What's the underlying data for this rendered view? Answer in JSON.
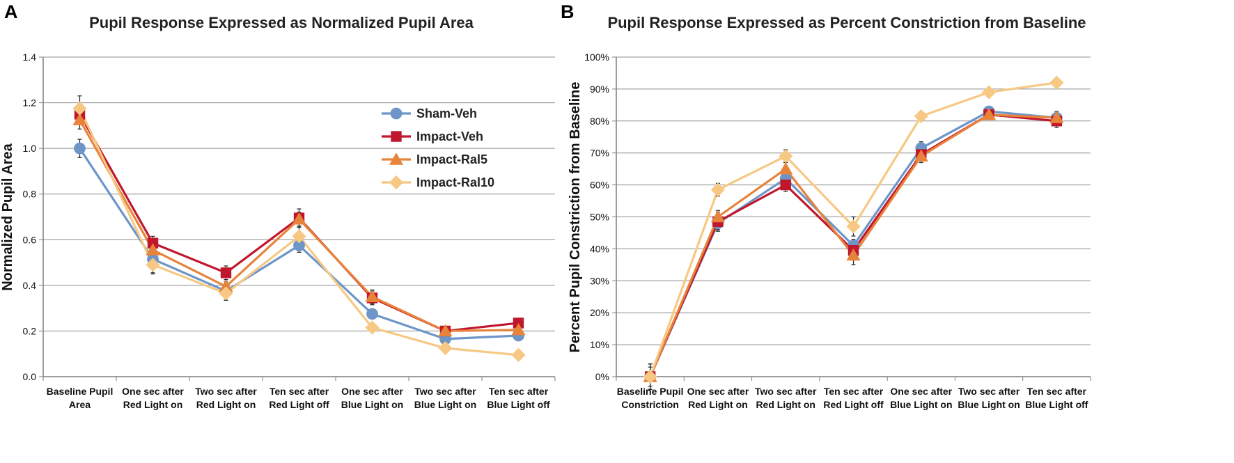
{
  "panels": [
    {
      "letter": "A",
      "title": "Pupil Response Expressed as Normalized Pupil Area",
      "ylabel": "Normalized Pupil Area",
      "y_ticks": [
        "0.0",
        "0.2",
        "0.4",
        "0.6",
        "0.8",
        "1.0",
        "1.2",
        "1.4"
      ],
      "categories": [
        [
          "Baseline Pupil",
          "Area"
        ],
        [
          "One sec after",
          "Red Light on"
        ],
        [
          "Two sec after",
          "Red Light on"
        ],
        [
          "Ten sec after",
          "Red Light off"
        ],
        [
          "One sec after",
          "Blue Light on"
        ],
        [
          "Two sec after",
          "Blue Light on"
        ],
        [
          "Ten sec after",
          "Blue Light off"
        ]
      ],
      "legend": [
        "Sham-Veh",
        "Impact-Veh",
        "Impact-Ral5",
        "Impact-Ral10"
      ]
    },
    {
      "letter": "B",
      "title": "Pupil Response Expressed as Percent Constriction from Baseline",
      "ylabel": "Percent Pupil Constriction from Baseline",
      "y_ticks": [
        "0%",
        "10%",
        "20%",
        "30%",
        "40%",
        "50%",
        "60%",
        "70%",
        "80%",
        "90%",
        "100%"
      ],
      "categories": [
        [
          "Baseline Pupil",
          "Constriction"
        ],
        [
          "One sec after",
          "Red Light on"
        ],
        [
          "Two sec after",
          "Red Light on"
        ],
        [
          "Ten sec after",
          "Red Light off"
        ],
        [
          "One sec after",
          "Blue Light on"
        ],
        [
          "Two sec after",
          "Blue Light on"
        ],
        [
          "Ten sec after",
          "Blue Light off"
        ]
      ]
    }
  ],
  "chart_data": [
    {
      "type": "line",
      "title": "Pupil Response Expressed as Normalized Pupil Area",
      "xlabel": "",
      "ylabel": "Normalized Pupil Area",
      "ylim": [
        0,
        1.4
      ],
      "grid": true,
      "legend_position": "top-right",
      "categories": [
        "Baseline Pupil Area",
        "One sec after Red Light on",
        "Two sec after Red Light on",
        "Ten sec after Red Light off",
        "One sec after Blue Light on",
        "Two sec after Blue Light on",
        "Ten sec after Blue Light off"
      ],
      "series": [
        {
          "name": "Sham-Veh",
          "color": "#6d95c8",
          "marker": "circle",
          "values": [
            1.0,
            0.515,
            0.375,
            0.575,
            0.275,
            0.165,
            0.18
          ],
          "errors": [
            0.04,
            0.06,
            0.04,
            0.03,
            0.02,
            0.01,
            0.01
          ]
        },
        {
          "name": "Impact-Veh",
          "color": "#c0172c",
          "marker": "square",
          "values": [
            1.15,
            0.585,
            0.455,
            0.695,
            0.345,
            0.2,
            0.235
          ],
          "errors": [
            0.04,
            0.03,
            0.03,
            0.04,
            0.03,
            0.02,
            0.02
          ]
        },
        {
          "name": "Impact-Ral5",
          "color": "#e7833a",
          "marker": "triangle",
          "values": [
            1.125,
            0.555,
            0.395,
            0.69,
            0.35,
            0.2,
            0.205
          ],
          "errors": [
            0.04,
            0.03,
            0.03,
            0.03,
            0.03,
            0.02,
            0.02
          ]
        },
        {
          "name": "Impact-Ral10",
          "color": "#f6c883",
          "marker": "diamond",
          "values": [
            1.175,
            0.49,
            0.365,
            0.615,
            0.215,
            0.125,
            0.095
          ],
          "errors": [
            0.055,
            0.04,
            0.03,
            0.04,
            0.02,
            0.01,
            0.01
          ]
        }
      ]
    },
    {
      "type": "line",
      "title": "Pupil Response Expressed as Percent Constriction from Baseline",
      "xlabel": "",
      "ylabel": "Percent Pupil Constriction from Baseline",
      "ylim": [
        0,
        100
      ],
      "grid": true,
      "categories": [
        "Baseline Pupil Constriction",
        "One sec after Red Light on",
        "Two sec after Red Light on",
        "Ten sec after Red Light off",
        "One sec after Blue Light on",
        "Two sec after Blue Light on",
        "Ten sec after Blue Light off"
      ],
      "series": [
        {
          "name": "Sham-Veh",
          "color": "#6d95c8",
          "marker": "circle",
          "values": [
            0,
            48,
            62,
            41,
            71.5,
            83,
            81
          ],
          "errors": [
            4,
            2,
            2,
            2,
            2,
            1,
            2
          ]
        },
        {
          "name": "Impact-Veh",
          "color": "#c0172c",
          "marker": "square",
          "values": [
            0,
            48.5,
            60,
            39.5,
            69.5,
            82,
            80
          ],
          "errors": [
            4,
            3,
            2,
            3,
            2,
            1,
            2
          ]
        },
        {
          "name": "Impact-Ral5",
          "color": "#e7833a",
          "marker": "triangle",
          "values": [
            0,
            50,
            65,
            38,
            69,
            82,
            81
          ],
          "errors": [
            3,
            2,
            2,
            3,
            2,
            1,
            1
          ]
        },
        {
          "name": "Impact-Ral10",
          "color": "#f6c883",
          "marker": "diamond",
          "values": [
            0,
            58.5,
            69,
            47,
            81.5,
            89,
            92
          ],
          "errors": [
            4,
            2,
            2,
            3,
            1,
            1,
            1
          ]
        }
      ]
    }
  ]
}
